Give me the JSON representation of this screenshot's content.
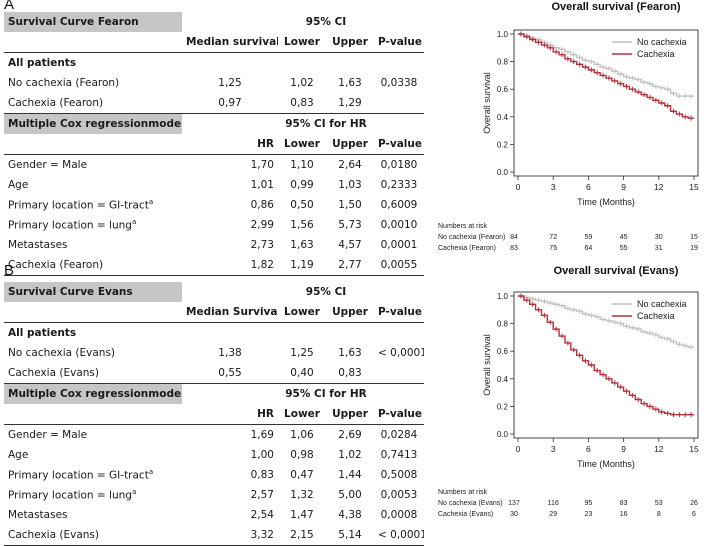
{
  "panels": [
    {
      "letter": "A",
      "table": {
        "survival_title": "Survival Curve Fearon",
        "ci_header": "95% CI",
        "col_headers": [
          "Median survival",
          "Lower",
          "Upper",
          "P-value"
        ],
        "all_patients_label": "All patients",
        "survival_rows": [
          {
            "label": "No cachexia (Fearon)",
            "median": "1,25",
            "lower": "1,02",
            "upper": "1,63",
            "p": "0,0338"
          },
          {
            "label": "Cachexia (Fearon)",
            "median": "0,97",
            "lower": "0,83",
            "upper": "1,29",
            "p": ""
          }
        ],
        "cox_title": "Multiple Cox regressionmodel",
        "ci_hr_header": "95% CI for HR",
        "cox_col_headers": [
          "HR",
          "Lower",
          "Upper",
          "P-value"
        ],
        "cox_rows": [
          {
            "label": "Gender = Male",
            "sup": "",
            "hr": "1,70",
            "lower": "1,10",
            "upper": "2,64",
            "p": "0,0180"
          },
          {
            "label": "Age",
            "sup": "",
            "hr": "1,01",
            "lower": "0,99",
            "upper": "1,03",
            "p": "0,2333"
          },
          {
            "label": "Primary location = GI-tract",
            "sup": "a",
            "hr": "0,86",
            "lower": "0,50",
            "upper": "1,50",
            "p": "0,6009"
          },
          {
            "label": "Primary location = lung",
            "sup": "a",
            "hr": "2,99",
            "lower": "1,56",
            "upper": "5,73",
            "p": "0,0010"
          },
          {
            "label": "Metastases",
            "sup": "",
            "hr": "2,73",
            "lower": "1,63",
            "upper": "4,57",
            "p": "0,0001"
          },
          {
            "label": "Cachexia (Fearon)",
            "sup": "",
            "hr": "1,82",
            "lower": "1,19",
            "upper": "2,77",
            "p": "0,0055"
          }
        ]
      },
      "risk": {
        "header": "Numbers at risk",
        "rows": [
          {
            "label": "No cachexia (Fearon)",
            "values": [
              84,
              72,
              59,
              45,
              30,
              15
            ]
          },
          {
            "label": "Cachexia (Fearon)",
            "values": [
              83,
              75,
              64,
              55,
              31,
              19
            ]
          }
        ]
      }
    },
    {
      "letter": "B",
      "table": {
        "survival_title": "Survival Curve Evans",
        "ci_header": "95% CI",
        "col_headers": [
          "Median Survival",
          "Lower",
          "Upper",
          "P-value"
        ],
        "all_patients_label": "All patients",
        "survival_rows": [
          {
            "label": "No cachexia (Evans)",
            "median": "1,38",
            "lower": "1,25",
            "upper": "1,63",
            "p": "< 0,0001"
          },
          {
            "label": "Cachexia (Evans)",
            "median": "0,55",
            "lower": "0,40",
            "upper": "0,83",
            "p": ""
          }
        ],
        "cox_title": "Multiple Cox regressionmodel",
        "ci_hr_header": "95% CI for HR",
        "cox_col_headers": [
          "HR",
          "Lower",
          "Upper",
          "P-value"
        ],
        "cox_rows": [
          {
            "label": "Gender = Male",
            "sup": "",
            "hr": "1,69",
            "lower": "1,06",
            "upper": "2,69",
            "p": "0,0284"
          },
          {
            "label": "Age",
            "sup": "",
            "hr": "1,00",
            "lower": "0,98",
            "upper": "1,02",
            "p": "0,7413"
          },
          {
            "label": "Primary location = GI-tract",
            "sup": "a",
            "hr": "0,83",
            "lower": "0,47",
            "upper": "1,44",
            "p": "0,5008"
          },
          {
            "label": "Primary location = lung",
            "sup": "a",
            "hr": "2,57",
            "lower": "1,32",
            "upper": "5,00",
            "p": "0,0053"
          },
          {
            "label": "Metastases",
            "sup": "",
            "hr": "2,54",
            "lower": "1,47",
            "upper": "4,38",
            "p": "0,0008"
          },
          {
            "label": "Cachexia (Evans)",
            "sup": "",
            "hr": "3,32",
            "lower": "2,15",
            "upper": "5,14",
            "p": "< 0,0001"
          }
        ]
      },
      "risk": {
        "header": "Numbers at risk",
        "rows": [
          {
            "label": "No cachexia (Evans)",
            "values": [
              137,
              116,
              95,
              83,
              53,
              26
            ]
          },
          {
            "label": "Cachexia (Evans)",
            "values": [
              30,
              29,
              23,
              16,
              8,
              6
            ]
          }
        ]
      }
    }
  ],
  "chart_data": [
    {
      "type": "line",
      "title": "Overall survival (Fearon)",
      "xlabel": "Time (Months)",
      "ylabel": "Overall survival",
      "xlim": [
        0,
        15
      ],
      "ylim": [
        0,
        1
      ],
      "xticks": [
        0,
        3,
        6,
        9,
        12,
        15
      ],
      "yticks": [
        "0.0",
        "0.2",
        "0.4",
        "0.6",
        "0.8",
        "1.0"
      ],
      "legend_position": "top-right",
      "series": [
        {
          "name": "No cachexia",
          "color": "#c0c0c0",
          "x": [
            0,
            0.5,
            1,
            1.5,
            2,
            2.5,
            3,
            3.5,
            4,
            4.5,
            5,
            5.5,
            6,
            6.5,
            7,
            7.5,
            8,
            8.5,
            9,
            9.5,
            10,
            10.5,
            11,
            11.5,
            12,
            12.5,
            13,
            13.5,
            14,
            14.5,
            15
          ],
          "y": [
            1.0,
            0.99,
            0.97,
            0.96,
            0.94,
            0.92,
            0.9,
            0.89,
            0.87,
            0.85,
            0.83,
            0.81,
            0.8,
            0.78,
            0.76,
            0.75,
            0.73,
            0.71,
            0.69,
            0.68,
            0.67,
            0.65,
            0.64,
            0.62,
            0.61,
            0.6,
            0.57,
            0.55,
            0.55,
            0.55,
            0.55
          ]
        },
        {
          "name": "Cachexia",
          "color": "#b0303a",
          "x": [
            0,
            0.5,
            1,
            1.5,
            2,
            2.5,
            3,
            3.5,
            4,
            4.5,
            5,
            5.5,
            6,
            6.5,
            7,
            7.5,
            8,
            8.5,
            9,
            9.5,
            10,
            10.5,
            11,
            11.5,
            12,
            12.5,
            13,
            13.5,
            14,
            14.5,
            15
          ],
          "y": [
            1.0,
            0.98,
            0.96,
            0.94,
            0.92,
            0.9,
            0.87,
            0.85,
            0.82,
            0.8,
            0.78,
            0.76,
            0.74,
            0.72,
            0.7,
            0.68,
            0.66,
            0.64,
            0.62,
            0.6,
            0.58,
            0.56,
            0.54,
            0.52,
            0.5,
            0.48,
            0.44,
            0.42,
            0.4,
            0.39,
            0.39
          ]
        }
      ]
    },
    {
      "type": "line",
      "title": "Overall survival (Evans)",
      "xlabel": "Time (Months)",
      "ylabel": "Overall survival",
      "xlim": [
        0,
        15
      ],
      "ylim": [
        0,
        1
      ],
      "xticks": [
        0,
        3,
        6,
        9,
        12,
        15
      ],
      "yticks": [
        "0.0",
        "0.2",
        "0.4",
        "0.6",
        "0.8",
        "1.0"
      ],
      "legend_position": "top-right",
      "series": [
        {
          "name": "No cachexia",
          "color": "#c0c0c0",
          "x": [
            0,
            0.5,
            1,
            1.5,
            2,
            2.5,
            3,
            3.5,
            4,
            4.5,
            5,
            5.5,
            6,
            6.5,
            7,
            7.5,
            8,
            8.5,
            9,
            9.5,
            10,
            10.5,
            11,
            11.5,
            12,
            12.5,
            13,
            13.5,
            14,
            14.5,
            15
          ],
          "y": [
            1.0,
            0.99,
            0.98,
            0.97,
            0.96,
            0.95,
            0.94,
            0.93,
            0.91,
            0.9,
            0.89,
            0.87,
            0.86,
            0.85,
            0.83,
            0.82,
            0.81,
            0.8,
            0.78,
            0.77,
            0.76,
            0.74,
            0.73,
            0.72,
            0.7,
            0.69,
            0.67,
            0.65,
            0.64,
            0.63,
            0.63
          ]
        },
        {
          "name": "Cachexia",
          "color": "#b0303a",
          "x": [
            0,
            0.5,
            1,
            1.5,
            2,
            2.5,
            3,
            3.5,
            4,
            4.5,
            5,
            5.5,
            6,
            6.5,
            7,
            7.5,
            8,
            8.5,
            9,
            9.5,
            10,
            10.5,
            11,
            11.5,
            12,
            12.5,
            13,
            13.5,
            14,
            14.5,
            15
          ],
          "y": [
            1.0,
            0.97,
            0.94,
            0.9,
            0.86,
            0.81,
            0.76,
            0.71,
            0.66,
            0.61,
            0.57,
            0.53,
            0.5,
            0.46,
            0.43,
            0.4,
            0.37,
            0.34,
            0.31,
            0.28,
            0.25,
            0.22,
            0.2,
            0.18,
            0.16,
            0.15,
            0.14,
            0.14,
            0.14,
            0.14,
            0.14
          ]
        }
      ]
    }
  ]
}
